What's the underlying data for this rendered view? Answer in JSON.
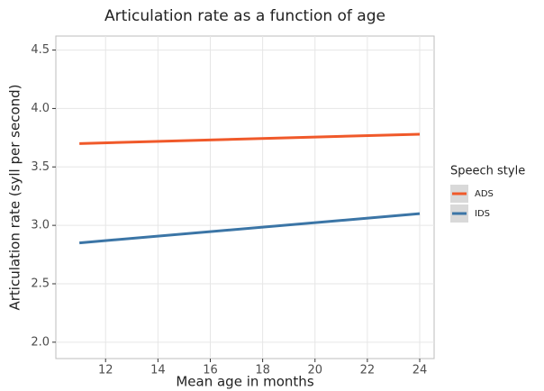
{
  "chart_data": {
    "type": "line",
    "title": "Articulation rate as a function of age",
    "x_label": "Mean age in months",
    "y_label": "Articulation rate (syll per second)",
    "legend_title": "Speech style",
    "legend_position": "right",
    "grid": true,
    "x": [
      11,
      24
    ],
    "series": [
      {
        "name": "ADS",
        "color": "#f0592a",
        "values": [
          3.7,
          3.78
        ]
      },
      {
        "name": "IDS",
        "color": "#3b75a6",
        "values": [
          2.85,
          3.1
        ]
      }
    ],
    "xlim": [
      10.1,
      24.55
    ],
    "xticks": [
      12,
      14,
      16,
      18,
      20,
      22,
      24
    ],
    "ylim": [
      1.86,
      4.62
    ],
    "yticks": [
      {
        "value": 2,
        "label": "2.0"
      },
      2.5,
      {
        "value": 3,
        "label": "3.0"
      },
      3.5,
      {
        "value": 4,
        "label": "4.0"
      },
      4.5
    ]
  }
}
